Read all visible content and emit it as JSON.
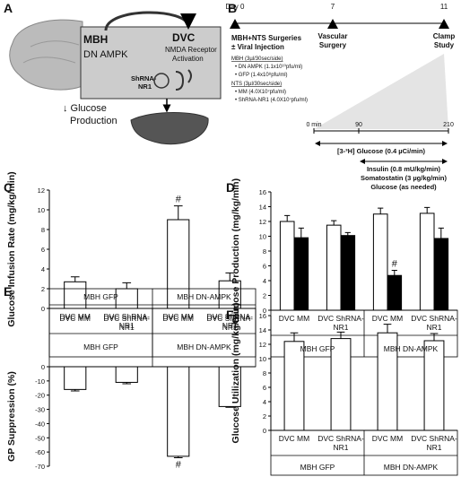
{
  "panel_a": {
    "label": "A",
    "mbh": "MBH",
    "dn_ampk": "DN AMPK",
    "dvc": "DVC",
    "nmda_1": "NMDA Receptor",
    "nmda_2": "Activation",
    "shrna_1": "ShRNA-",
    "shrna_2": "NR1",
    "outcome_1": "↓ Glucose",
    "outcome_2": "Production"
  },
  "panel_b": {
    "label": "B",
    "day_start": "Day 0",
    "day_2": 7,
    "day_3": 11,
    "event_1a": "MBH+NTS Surgeries",
    "event_1b": "± Viral Injection",
    "event_2a": "Vascular",
    "event_2b": "Surgery",
    "event_3a": "Clamp",
    "event_3b": "Study",
    "notes": [
      "MBH (3µl/30sec/side)",
      "• DN AMPK (1.1x10¹⁰pfu/ml)",
      "• GFP (1.4x10⁸pfu/ml)",
      "NTS (3µl/30sec/side)",
      "• MM (4.0X10⁷pfu/ml)",
      "• ShRNA-NR1 (4.0X10⁷pfu/ml)"
    ],
    "min_start": "0 min",
    "min_2": 90,
    "min_3": 210,
    "infusion_1": "[3-³H] Glucose (0.4 µCi/min)",
    "infusion_2": "Insulin (0.8 mU/kg/min)",
    "infusion_3": "Somatostatin (3 µg/kg/min)",
    "infusion_4": "Glucose (as needed)"
  },
  "chart_data": [
    {
      "type": "bar",
      "panel": "C",
      "ylabel": "Glucose Infusion Rate (mg/kg/min)",
      "categories": [
        "DVC MM",
        "DVC ShRNA-NR1",
        "DVC MM",
        "DVC ShRNA-NR1"
      ],
      "groups": [
        "MBH GFP",
        "MBH DN-AMPK"
      ],
      "series": [
        {
          "color": "#ffffff",
          "values": [
            2.7,
            2.0,
            9.0,
            2.8
          ],
          "errors": [
            0.5,
            0.6,
            1.4,
            0.8
          ]
        }
      ],
      "annotations": [
        {
          "text": "#",
          "category": 2,
          "series": 0
        }
      ],
      "ylim": [
        0,
        12
      ],
      "yticks": [
        0,
        2,
        4,
        6,
        8,
        10,
        12
      ]
    },
    {
      "type": "bar",
      "panel": "D",
      "ylabel": "Glucose Production (mg/kg/min)",
      "categories": [
        "DVC MM",
        "DVC ShRNA-NR1",
        "DVC MM",
        "DVC ShRNA-NR1"
      ],
      "groups": [
        "MBH GFP",
        "MBH DN-AMPK"
      ],
      "series": [
        {
          "color": "#ffffff",
          "values": [
            12.0,
            11.5,
            13.0,
            13.1
          ],
          "errors": [
            0.8,
            0.6,
            0.8,
            0.8
          ]
        },
        {
          "color": "#000000",
          "values": [
            9.8,
            10.1,
            4.7,
            9.7
          ],
          "errors": [
            1.3,
            0.4,
            0.7,
            1.4
          ]
        }
      ],
      "annotations": [
        {
          "text": "#",
          "category": 2,
          "series": 1
        }
      ],
      "ylim": [
        0,
        16
      ],
      "yticks": [
        0,
        2,
        4,
        6,
        8,
        10,
        12,
        14,
        16
      ]
    },
    {
      "type": "bar",
      "panel": "E",
      "ylabel": "GP Suppression (%)",
      "categories": [
        "DVC MM",
        "DVC ShRNA-NR1",
        "DVC MM",
        "DVC ShRNA-NR1"
      ],
      "groups": [
        "MBH GFP",
        "MBH DN-AMPK"
      ],
      "series": [
        {
          "color": "#ffffff",
          "values": [
            -16,
            -11,
            -63,
            -28
          ],
          "errors": [
            1,
            1,
            1,
            0.5
          ]
        }
      ],
      "annotations": [
        {
          "text": "#",
          "category": 2,
          "series": 0
        }
      ],
      "ylim": [
        -70,
        0
      ],
      "yticks": [
        0,
        -10,
        -20,
        -30,
        -40,
        -50,
        -60,
        -70
      ]
    },
    {
      "type": "bar",
      "panel": "F",
      "ylabel": "Glucose Utilization (mg/kg/min)",
      "categories": [
        "DVC MM",
        "DVC ShRNA-NR1",
        "DVC MM",
        "DVC ShRNA-NR1"
      ],
      "groups": [
        "MBH GFP",
        "MBH DN-AMPK"
      ],
      "series": [
        {
          "color": "#ffffff",
          "values": [
            12.4,
            12.8,
            13.6,
            12.5
          ],
          "errors": [
            1.2,
            0.9,
            1.2,
            1.0
          ]
        }
      ],
      "annotations": [],
      "ylim": [
        0,
        16
      ],
      "yticks": [
        0,
        2,
        4,
        6,
        8,
        10,
        12,
        14,
        16
      ]
    }
  ]
}
